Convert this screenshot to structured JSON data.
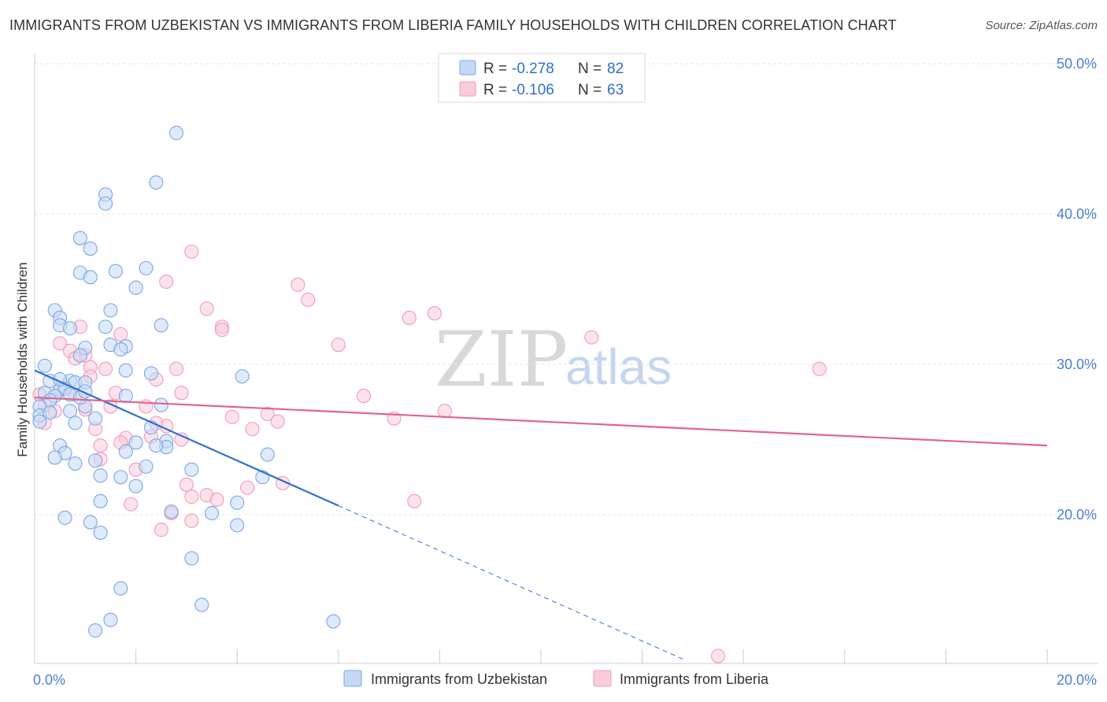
{
  "title": "IMMIGRANTS FROM UZBEKISTAN VS IMMIGRANTS FROM LIBERIA FAMILY HOUSEHOLDS WITH CHILDREN CORRELATION CHART",
  "source": "Source: ZipAtlas.com",
  "watermark": {
    "zip": "ZIP",
    "atlas": "atlas"
  },
  "colors": {
    "blue_fill": "#c5d8f5",
    "blue_stroke": "#7aa6e6",
    "blue_line": "#2f6fd0",
    "pink_fill": "#f9ccdb",
    "pink_stroke": "#f19bb6",
    "pink_line": "#e0658f",
    "tick_label": "#4a7fd1",
    "grid": "#e6e6e6"
  },
  "legend": {
    "row1": {
      "r_label": "R =",
      "r_value": "-0.278",
      "n_label": "N =",
      "n_value": "82"
    },
    "row2": {
      "r_label": "R =",
      "r_value": "-0.106",
      "n_label": "N =",
      "n_value": "63"
    }
  },
  "chart_data": {
    "type": "scatter",
    "title": "IMMIGRANTS FROM UZBEKISTAN VS IMMIGRANTS FROM LIBERIA FAMILY HOUSEHOLDS WITH CHILDREN CORRELATION CHART",
    "xlabel": "",
    "ylabel": "Family Households with Children",
    "xlim": [
      0,
      20
    ],
    "ylim": [
      10,
      52
    ],
    "x_tick_labels": [
      {
        "value": 0,
        "label": "0.0%"
      },
      {
        "value": 20,
        "label": "20.0%"
      }
    ],
    "y_tick_labels": [
      {
        "value": 20,
        "label": "20.0%"
      },
      {
        "value": 30,
        "label": "30.0%"
      },
      {
        "value": 40,
        "label": "40.0%"
      },
      {
        "value": 50,
        "label": "50.0%"
      }
    ],
    "grid": true,
    "series": [
      {
        "name": "Immigrants from Uzbekistan",
        "color": "blue",
        "r": -0.278,
        "n": 82,
        "trend": {
          "x0": 0,
          "y0": 29.6,
          "x1": 6.0,
          "y1": 20.6,
          "dash_to_x": 12.8
        },
        "points": [
          [
            2.8,
            45.4
          ],
          [
            2.4,
            42.1
          ],
          [
            1.4,
            41.3
          ],
          [
            1.4,
            40.7
          ],
          [
            0.9,
            38.4
          ],
          [
            1.1,
            37.7
          ],
          [
            0.9,
            36.1
          ],
          [
            1.1,
            35.8
          ],
          [
            1.6,
            36.2
          ],
          [
            2.2,
            36.4
          ],
          [
            2.0,
            35.1
          ],
          [
            0.4,
            33.6
          ],
          [
            1.5,
            33.6
          ],
          [
            0.5,
            33.1
          ],
          [
            0.5,
            32.6
          ],
          [
            0.7,
            32.4
          ],
          [
            1.4,
            32.5
          ],
          [
            2.5,
            32.6
          ],
          [
            1.5,
            31.3
          ],
          [
            1.8,
            31.2
          ],
          [
            1.0,
            31.1
          ],
          [
            0.9,
            30.6
          ],
          [
            1.7,
            31.0
          ],
          [
            0.2,
            29.9
          ],
          [
            1.8,
            29.6
          ],
          [
            2.3,
            29.4
          ],
          [
            4.1,
            29.2
          ],
          [
            0.3,
            28.9
          ],
          [
            0.7,
            28.9
          ],
          [
            0.8,
            28.8
          ],
          [
            1.0,
            28.8
          ],
          [
            0.5,
            28.3
          ],
          [
            0.2,
            28.1
          ],
          [
            0.6,
            28.4
          ],
          [
            0.4,
            27.9
          ],
          [
            0.7,
            28.0
          ],
          [
            1.8,
            27.9
          ],
          [
            0.3,
            27.6
          ],
          [
            0.1,
            27.2
          ],
          [
            1.0,
            27.2
          ],
          [
            2.5,
            27.3
          ],
          [
            0.7,
            26.9
          ],
          [
            0.1,
            26.6
          ],
          [
            0.1,
            26.2
          ],
          [
            0.8,
            26.1
          ],
          [
            1.2,
            26.4
          ],
          [
            2.3,
            25.8
          ],
          [
            2.6,
            24.9
          ],
          [
            2.6,
            24.5
          ],
          [
            2.4,
            24.6
          ],
          [
            0.5,
            24.6
          ],
          [
            0.6,
            24.1
          ],
          [
            1.8,
            24.2
          ],
          [
            4.6,
            24.0
          ],
          [
            0.4,
            23.8
          ],
          [
            1.2,
            23.6
          ],
          [
            0.8,
            23.4
          ],
          [
            2.2,
            23.2
          ],
          [
            3.1,
            23.0
          ],
          [
            1.3,
            22.6
          ],
          [
            1.7,
            22.5
          ],
          [
            4.5,
            22.5
          ],
          [
            2.0,
            21.9
          ],
          [
            1.3,
            20.9
          ],
          [
            4.0,
            20.8
          ],
          [
            2.7,
            20.2
          ],
          [
            3.5,
            20.1
          ],
          [
            0.6,
            19.8
          ],
          [
            1.1,
            19.5
          ],
          [
            4.0,
            19.3
          ],
          [
            1.3,
            18.8
          ],
          [
            3.1,
            17.1
          ],
          [
            1.7,
            15.1
          ],
          [
            3.3,
            14.0
          ],
          [
            1.5,
            13.0
          ],
          [
            1.2,
            12.3
          ],
          [
            5.9,
            12.9
          ],
          [
            0.3,
            26.8
          ],
          [
            0.9,
            27.8
          ],
          [
            2.0,
            24.8
          ],
          [
            1.0,
            28.2
          ],
          [
            0.5,
            29.0
          ]
        ]
      },
      {
        "name": "Immigrants from Liberia",
        "color": "pink",
        "r": -0.106,
        "n": 63,
        "trend": {
          "x0": 0,
          "y0": 27.8,
          "x1": 20,
          "y1": 24.6
        },
        "points": [
          [
            3.1,
            37.5
          ],
          [
            2.6,
            35.5
          ],
          [
            5.2,
            35.3
          ],
          [
            5.4,
            34.3
          ],
          [
            3.4,
            33.7
          ],
          [
            7.4,
            33.1
          ],
          [
            7.9,
            33.4
          ],
          [
            3.7,
            32.5
          ],
          [
            0.9,
            32.5
          ],
          [
            3.7,
            32.3
          ],
          [
            1.7,
            32.0
          ],
          [
            6.0,
            31.3
          ],
          [
            11.0,
            31.8
          ],
          [
            0.5,
            31.4
          ],
          [
            0.7,
            30.9
          ],
          [
            1.0,
            30.6
          ],
          [
            0.8,
            30.4
          ],
          [
            1.1,
            29.8
          ],
          [
            1.4,
            29.7
          ],
          [
            2.8,
            29.7
          ],
          [
            15.5,
            29.7
          ],
          [
            2.4,
            29.0
          ],
          [
            1.1,
            29.2
          ],
          [
            0.5,
            28.3
          ],
          [
            0.8,
            28.0
          ],
          [
            1.6,
            28.1
          ],
          [
            2.9,
            28.1
          ],
          [
            6.5,
            27.9
          ],
          [
            0.2,
            27.3
          ],
          [
            1.0,
            27.0
          ],
          [
            1.5,
            27.2
          ],
          [
            2.2,
            27.2
          ],
          [
            3.9,
            26.5
          ],
          [
            4.6,
            26.7
          ],
          [
            4.8,
            26.2
          ],
          [
            7.1,
            26.4
          ],
          [
            8.1,
            26.9
          ],
          [
            1.2,
            25.7
          ],
          [
            2.3,
            25.2
          ],
          [
            2.6,
            25.9
          ],
          [
            4.3,
            25.7
          ],
          [
            1.8,
            25.1
          ],
          [
            2.9,
            25.0
          ],
          [
            1.7,
            24.8
          ],
          [
            1.3,
            24.6
          ],
          [
            2.0,
            23.0
          ],
          [
            3.1,
            21.2
          ],
          [
            3.4,
            21.3
          ],
          [
            3.6,
            21.0
          ],
          [
            4.2,
            21.8
          ],
          [
            4.9,
            22.1
          ],
          [
            7.5,
            20.9
          ],
          [
            1.9,
            20.7
          ],
          [
            2.7,
            20.1
          ],
          [
            3.1,
            19.6
          ],
          [
            2.5,
            19.0
          ],
          [
            13.5,
            10.6
          ],
          [
            0.2,
            26.1
          ],
          [
            0.4,
            26.9
          ],
          [
            0.1,
            28.0
          ],
          [
            1.3,
            23.7
          ],
          [
            3.0,
            22.0
          ],
          [
            2.4,
            26.1
          ]
        ]
      }
    ]
  }
}
